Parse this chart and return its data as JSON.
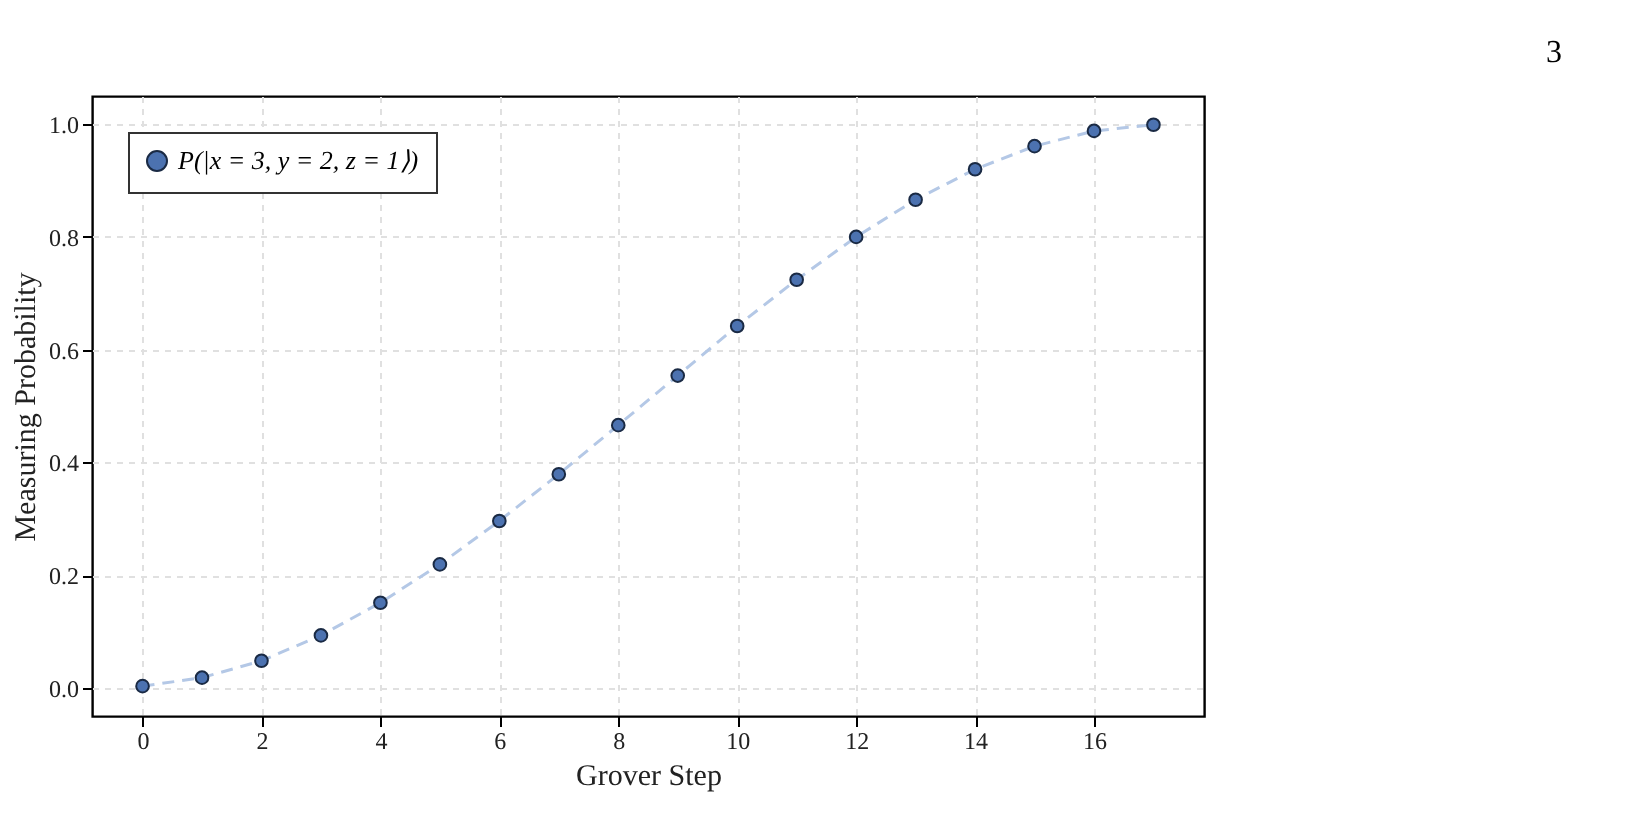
{
  "chart_data": {
    "type": "line",
    "xlabel": "Grover Step",
    "ylabel": "Measuring Probability",
    "annotations": [
      "3"
    ],
    "x": [
      0,
      1,
      2,
      3,
      4,
      5,
      6,
      7,
      8,
      9,
      10,
      11,
      12,
      13,
      14,
      15,
      16,
      17
    ],
    "series": [
      {
        "color": "#b4c8e6",
        "line_style": "dashed",
        "values": [
          0.003,
          0.018,
          0.048,
          0.093,
          0.151,
          0.219,
          0.296,
          0.379,
          0.466,
          0.554,
          0.642,
          0.724,
          0.8,
          0.866,
          0.92,
          0.961,
          0.988,
          0.999
        ]
      },
      {
        "type": "scatter",
        "name": "P(|x = 3, y = 2, z = 1⟩)",
        "color": "#4c72b0",
        "marker": "circle",
        "values": [
          0.003,
          0.018,
          0.048,
          0.093,
          0.151,
          0.219,
          0.296,
          0.379,
          0.466,
          0.554,
          0.642,
          0.724,
          0.8,
          0.866,
          0.92,
          0.961,
          0.988,
          0.999
        ]
      }
    ],
    "xlim": [
      -0.85,
      17.85
    ],
    "ylim": [
      -0.05,
      1.05
    ],
    "xticks": [
      0,
      2,
      4,
      6,
      8,
      10,
      12,
      14,
      16
    ],
    "yticks": [
      {
        "value": 0,
        "label": "0.0"
      },
      {
        "value": 0.2,
        "label": "0.2"
      },
      {
        "value": 0.4,
        "label": "0.4"
      },
      {
        "value": 0.6,
        "label": "0.6"
      },
      {
        "value": 0.8,
        "label": "0.8"
      },
      {
        "value": 1,
        "label": "1.0"
      }
    ],
    "grid": true,
    "legend": "top left"
  }
}
